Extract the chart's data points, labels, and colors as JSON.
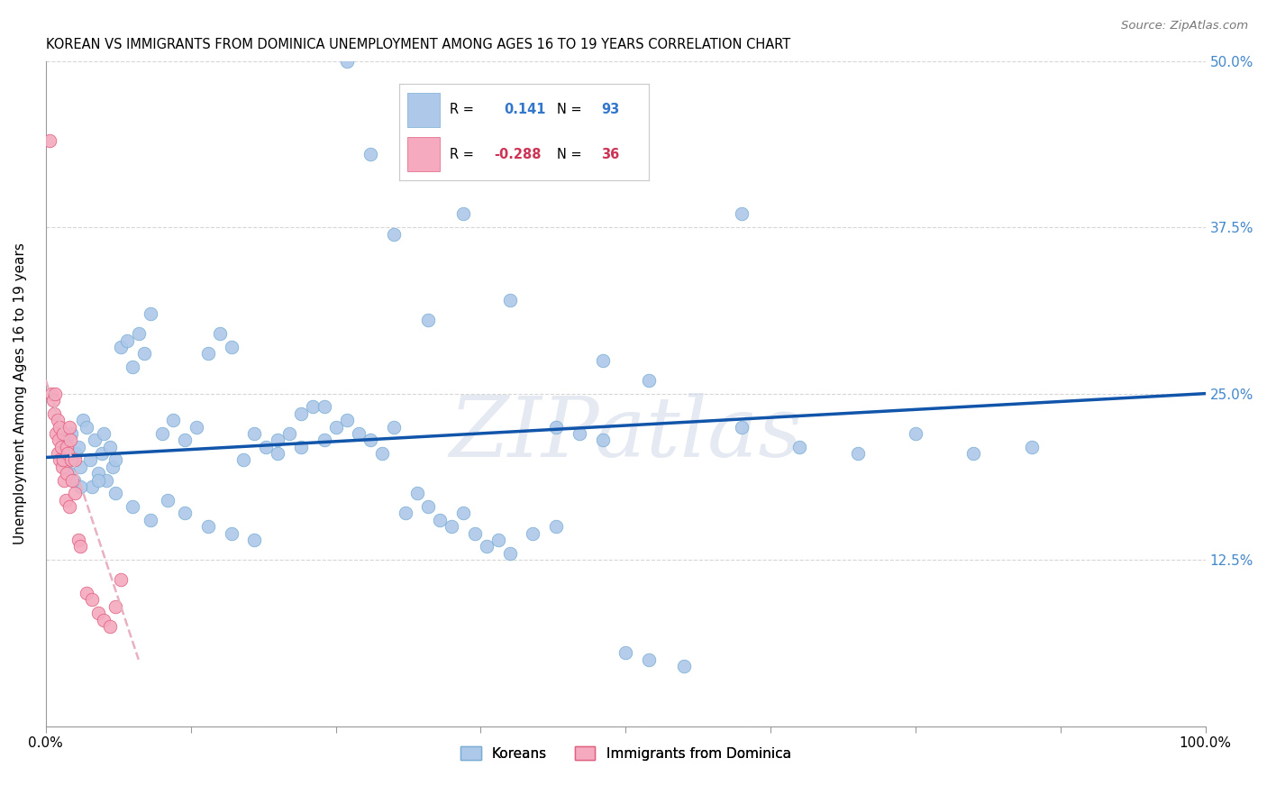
{
  "title": "KOREAN VS IMMIGRANTS FROM DOMINICA UNEMPLOYMENT AMONG AGES 16 TO 19 YEARS CORRELATION CHART",
  "source": "Source: ZipAtlas.com",
  "ylabel": "Unemployment Among Ages 16 to 19 years",
  "legend_label1": "Koreans",
  "legend_label2": "Immigrants from Dominica",
  "R1": 0.141,
  "N1": 93,
  "R2": -0.288,
  "N2": 36,
  "korean_color": "#adc8e8",
  "dominica_color": "#f5aabf",
  "korean_edge": "#7aaed4",
  "dominica_edge": "#e06080",
  "regression_blue": "#1155aa",
  "regression_pink_dash": "#e8b0c0",
  "watermark": "ZIPatlas",
  "xlim": [
    0,
    100
  ],
  "ylim": [
    0,
    50
  ],
  "korean_x": [
    1.5,
    1.8,
    2.0,
    2.2,
    2.4,
    2.6,
    2.8,
    3.0,
    3.2,
    3.5,
    3.8,
    4.0,
    4.2,
    4.5,
    4.8,
    5.0,
    5.2,
    5.5,
    5.8,
    6.0,
    6.5,
    7.0,
    7.5,
    8.0,
    8.5,
    9.0,
    10.0,
    11.0,
    12.0,
    13.0,
    14.0,
    15.0,
    16.0,
    17.0,
    18.0,
    19.0,
    20.0,
    21.0,
    22.0,
    23.0,
    24.0,
    25.0,
    26.0,
    27.0,
    28.0,
    29.0,
    30.0,
    31.0,
    32.0,
    33.0,
    34.0,
    35.0,
    36.0,
    37.0,
    38.0,
    39.0,
    40.0,
    42.0,
    44.0,
    46.0,
    48.0,
    50.0,
    52.0,
    55.0,
    60.0,
    65.0,
    70.0,
    75.0,
    80.0,
    85.0,
    3.0,
    4.5,
    6.0,
    7.5,
    9.0,
    10.5,
    12.0,
    14.0,
    16.0,
    18.0,
    20.0,
    22.0,
    24.0,
    26.0,
    28.0,
    30.0,
    33.0,
    36.0,
    40.0,
    44.0,
    48.0,
    52.0,
    60.0
  ],
  "korean_y": [
    20.0,
    21.5,
    19.0,
    22.0,
    18.5,
    20.5,
    21.0,
    19.5,
    23.0,
    22.5,
    20.0,
    18.0,
    21.5,
    19.0,
    20.5,
    22.0,
    18.5,
    21.0,
    19.5,
    20.0,
    28.5,
    29.0,
    27.0,
    29.5,
    28.0,
    31.0,
    22.0,
    23.0,
    21.5,
    22.5,
    28.0,
    29.5,
    28.5,
    20.0,
    22.0,
    21.0,
    20.5,
    22.0,
    23.5,
    24.0,
    21.5,
    22.5,
    23.0,
    22.0,
    21.5,
    20.5,
    22.5,
    16.0,
    17.5,
    16.5,
    15.5,
    15.0,
    16.0,
    14.5,
    13.5,
    14.0,
    13.0,
    14.5,
    15.0,
    22.0,
    21.5,
    5.5,
    5.0,
    4.5,
    22.5,
    21.0,
    20.5,
    22.0,
    20.5,
    21.0,
    18.0,
    18.5,
    17.5,
    16.5,
    15.5,
    17.0,
    16.0,
    15.0,
    14.5,
    14.0,
    21.5,
    21.0,
    24.0,
    50.0,
    43.0,
    37.0,
    30.5,
    38.5,
    32.0,
    22.5,
    27.5,
    26.0,
    38.5
  ],
  "dominica_x": [
    0.3,
    0.5,
    0.6,
    0.7,
    0.8,
    0.9,
    1.0,
    1.0,
    1.1,
    1.2,
    1.2,
    1.3,
    1.4,
    1.5,
    1.5,
    1.6,
    1.7,
    1.8,
    1.8,
    1.9,
    2.0,
    2.0,
    2.1,
    2.2,
    2.3,
    2.5,
    2.5,
    2.8,
    3.0,
    3.5,
    4.0,
    4.5,
    5.0,
    5.5,
    6.0,
    6.5
  ],
  "dominica_y": [
    44.0,
    25.0,
    24.5,
    23.5,
    25.0,
    22.0,
    20.5,
    23.0,
    21.5,
    20.0,
    22.5,
    21.0,
    19.5,
    20.0,
    22.0,
    18.5,
    17.0,
    19.0,
    21.0,
    20.5,
    16.5,
    22.5,
    21.5,
    20.0,
    18.5,
    17.5,
    20.0,
    14.0,
    13.5,
    10.0,
    9.5,
    8.5,
    8.0,
    7.5,
    9.0,
    11.0
  ],
  "korean_regline_x": [
    0,
    100
  ],
  "korean_regline_y": [
    20.2,
    25.0
  ],
  "dominica_regline_x": [
    0,
    8
  ],
  "dominica_regline_y": [
    26.0,
    5.0
  ]
}
